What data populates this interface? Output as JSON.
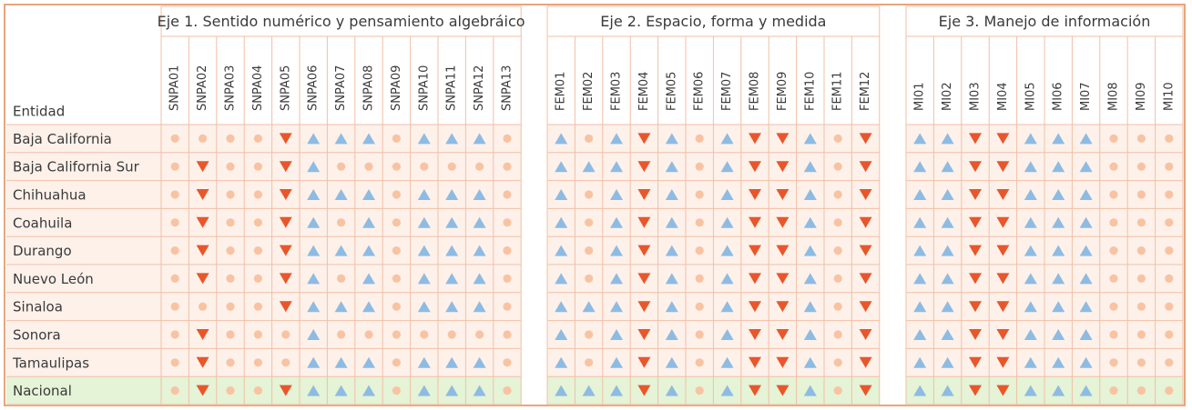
{
  "corner": "Entidad",
  "groups": [
    {
      "title": "Eje 1. Sentido numérico y pensamiento algebráico",
      "columns": [
        "SNPA01",
        "SNPA02",
        "SNPA03",
        "SNPA04",
        "SNPA05",
        "SNPA06",
        "SNPA07",
        "SNPA08",
        "SNPA09",
        "SNPA10",
        "SNPA11",
        "SNPA12",
        "SNPA13"
      ]
    },
    {
      "title": "Eje 2. Espacio, forma y medida",
      "columns": [
        "FEM01",
        "FEM02",
        "FEM03",
        "FEM04",
        "FEM05",
        "FEM06",
        "FEM07",
        "FEM08",
        "FEM09",
        "FEM10",
        "FEM11",
        "FEM12"
      ]
    },
    {
      "title": "Eje 3. Manejo de información",
      "columns": [
        "MI01",
        "MI02",
        "MI03",
        "MI04",
        "MI05",
        "MI06",
        "MI07",
        "MI08",
        "MI09",
        "MI10"
      ]
    }
  ],
  "rows": [
    {
      "name": "Baja California",
      "marks": [
        [
          "c",
          "c",
          "c",
          "c",
          "d",
          "u",
          "u",
          "u",
          "c",
          "u",
          "u",
          "u",
          "c"
        ],
        [
          "u",
          "c",
          "u",
          "d",
          "u",
          "c",
          "u",
          "d",
          "d",
          "u",
          "c",
          "d"
        ],
        [
          "u",
          "u",
          "d",
          "d",
          "u",
          "u",
          "u",
          "c",
          "c",
          "c"
        ]
      ]
    },
    {
      "name": "Baja California Sur",
      "marks": [
        [
          "c",
          "d",
          "c",
          "c",
          "d",
          "u",
          "c",
          "c",
          "c",
          "c",
          "c",
          "c",
          "c"
        ],
        [
          "u",
          "u",
          "u",
          "d",
          "u",
          "c",
          "u",
          "d",
          "d",
          "u",
          "c",
          "d"
        ],
        [
          "u",
          "u",
          "d",
          "d",
          "u",
          "u",
          "u",
          "c",
          "c",
          "c"
        ]
      ]
    },
    {
      "name": "Chihuahua",
      "marks": [
        [
          "c",
          "d",
          "c",
          "c",
          "d",
          "u",
          "u",
          "u",
          "c",
          "u",
          "u",
          "u",
          "c"
        ],
        [
          "u",
          "c",
          "u",
          "d",
          "u",
          "c",
          "u",
          "d",
          "d",
          "u",
          "c",
          "d"
        ],
        [
          "u",
          "u",
          "d",
          "d",
          "u",
          "u",
          "u",
          "c",
          "c",
          "c"
        ]
      ]
    },
    {
      "name": "Coahuila",
      "marks": [
        [
          "c",
          "d",
          "c",
          "c",
          "d",
          "u",
          "c",
          "u",
          "c",
          "u",
          "u",
          "u",
          "c"
        ],
        [
          "u",
          "c",
          "u",
          "d",
          "u",
          "c",
          "u",
          "d",
          "d",
          "u",
          "c",
          "d"
        ],
        [
          "u",
          "u",
          "d",
          "d",
          "u",
          "u",
          "u",
          "c",
          "c",
          "c"
        ]
      ]
    },
    {
      "name": "Durango",
      "marks": [
        [
          "c",
          "d",
          "c",
          "c",
          "d",
          "u",
          "u",
          "u",
          "c",
          "u",
          "u",
          "u",
          "c"
        ],
        [
          "u",
          "c",
          "u",
          "d",
          "u",
          "c",
          "u",
          "d",
          "d",
          "u",
          "c",
          "d"
        ],
        [
          "u",
          "u",
          "d",
          "d",
          "u",
          "u",
          "u",
          "c",
          "c",
          "c"
        ]
      ]
    },
    {
      "name": "Nuevo León",
      "marks": [
        [
          "c",
          "d",
          "c",
          "c",
          "d",
          "u",
          "c",
          "u",
          "c",
          "u",
          "u",
          "u",
          "c"
        ],
        [
          "u",
          "c",
          "u",
          "d",
          "u",
          "c",
          "u",
          "d",
          "d",
          "u",
          "c",
          "d"
        ],
        [
          "u",
          "u",
          "d",
          "d",
          "u",
          "u",
          "u",
          "c",
          "c",
          "c"
        ]
      ]
    },
    {
      "name": "Sinaloa",
      "marks": [
        [
          "c",
          "c",
          "c",
          "c",
          "d",
          "u",
          "u",
          "u",
          "c",
          "u",
          "u",
          "u",
          "c"
        ],
        [
          "u",
          "u",
          "u",
          "d",
          "u",
          "c",
          "u",
          "d",
          "d",
          "u",
          "c",
          "d"
        ],
        [
          "u",
          "u",
          "d",
          "d",
          "u",
          "u",
          "u",
          "c",
          "c",
          "c"
        ]
      ]
    },
    {
      "name": "Sonora",
      "marks": [
        [
          "c",
          "d",
          "c",
          "c",
          "c",
          "u",
          "c",
          "c",
          "c",
          "c",
          "c",
          "c",
          "c"
        ],
        [
          "u",
          "c",
          "u",
          "d",
          "u",
          "c",
          "u",
          "d",
          "d",
          "u",
          "c",
          "d"
        ],
        [
          "u",
          "u",
          "d",
          "d",
          "u",
          "u",
          "u",
          "c",
          "c",
          "c"
        ]
      ]
    },
    {
      "name": "Tamaulipas",
      "marks": [
        [
          "c",
          "d",
          "c",
          "c",
          "c",
          "u",
          "u",
          "u",
          "c",
          "u",
          "u",
          "u",
          "c"
        ],
        [
          "u",
          "c",
          "u",
          "d",
          "u",
          "c",
          "u",
          "d",
          "d",
          "u",
          "c",
          "d"
        ],
        [
          "u",
          "u",
          "d",
          "d",
          "u",
          "u",
          "u",
          "c",
          "c",
          "c"
        ]
      ]
    },
    {
      "name": "Nacional",
      "marks": [
        [
          "c",
          "d",
          "c",
          "c",
          "d",
          "u",
          "u",
          "u",
          "c",
          "u",
          "u",
          "u",
          "c"
        ],
        [
          "u",
          "u",
          "u",
          "d",
          "u",
          "c",
          "u",
          "d",
          "d",
          "u",
          "c",
          "d"
        ],
        [
          "u",
          "u",
          "d",
          "d",
          "u",
          "u",
          "u",
          "c",
          "c",
          "c"
        ]
      ]
    }
  ]
}
